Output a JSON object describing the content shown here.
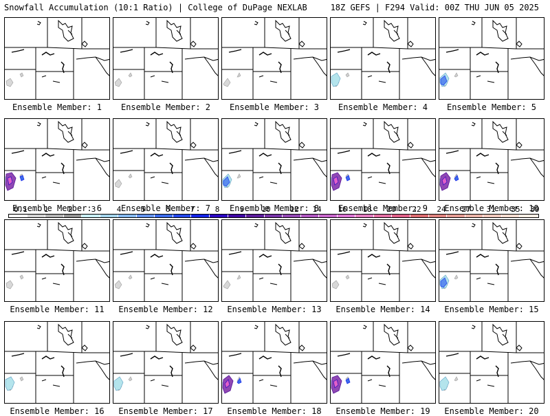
{
  "header": {
    "title_left": "Snowfall Accumulation (10:1 Ratio) | College of DuPage NEXLAB",
    "title_right": "18Z GEFS | F294 Valid: 00Z THU JUN 05 2025"
  },
  "panels": [
    {
      "caption": "Ensemble Member: 1",
      "snow_level": 1
    },
    {
      "caption": "Ensemble Member: 2",
      "snow_level": 1
    },
    {
      "caption": "Ensemble Member: 3",
      "snow_level": 1
    },
    {
      "caption": "Ensemble Member: 4",
      "snow_level": 2
    },
    {
      "caption": "Ensemble Member: 5",
      "snow_level": 3
    },
    {
      "caption": "Ensemble Member: 6",
      "snow_level": 4
    },
    {
      "caption": "Ensemble Member: 7",
      "snow_level": 1
    },
    {
      "caption": "Ensemble Member: 8",
      "snow_level": 3
    },
    {
      "caption": "Ensemble Member: 9",
      "snow_level": 4
    },
    {
      "caption": "Ensemble Member: 10",
      "snow_level": 4
    },
    {
      "caption": "Ensemble Member: 11",
      "snow_level": 1
    },
    {
      "caption": "Ensemble Member: 12",
      "snow_level": 1
    },
    {
      "caption": "Ensemble Member: 13",
      "snow_level": 1
    },
    {
      "caption": "Ensemble Member: 14",
      "snow_level": 1
    },
    {
      "caption": "Ensemble Member: 15",
      "snow_level": 3
    },
    {
      "caption": "Ensemble Member: 16",
      "snow_level": 2
    },
    {
      "caption": "Ensemble Member: 17",
      "snow_level": 2
    },
    {
      "caption": "Ensemble Member: 18",
      "snow_level": 4
    },
    {
      "caption": "Ensemble Member: 19",
      "snow_level": 4
    },
    {
      "caption": "Ensemble Member: 20",
      "snow_level": 2
    }
  ],
  "colorbar": {
    "labels": [
      "0.1",
      "1",
      "2",
      "3",
      "4",
      "5",
      "6",
      "7",
      "8",
      "9",
      "10",
      "12",
      "14",
      "16",
      "18",
      "20",
      "22",
      "24",
      "27",
      "31",
      "35",
      "39"
    ],
    "colors": [
      "#f4f4f4",
      "#d4d4d4",
      "#b4b4b4",
      "#949494",
      "#c8eef4",
      "#a4d4ec",
      "#84b8ee",
      "#6494ee",
      "#3c6cec",
      "#2448ec",
      "#1424e8",
      "#2c08c4",
      "#4008a4",
      "#5c1c9c",
      "#7834a8",
      "#9448b4",
      "#b058c0",
      "#c868cc",
      "#dc74d4",
      "#e47cc0",
      "#e470a4",
      "#e06088",
      "#dc6c70",
      "#e08480",
      "#e49c94",
      "#eab4a8",
      "#f0c8bc",
      "#f6dcd0",
      "#fbeee4"
    ]
  }
}
